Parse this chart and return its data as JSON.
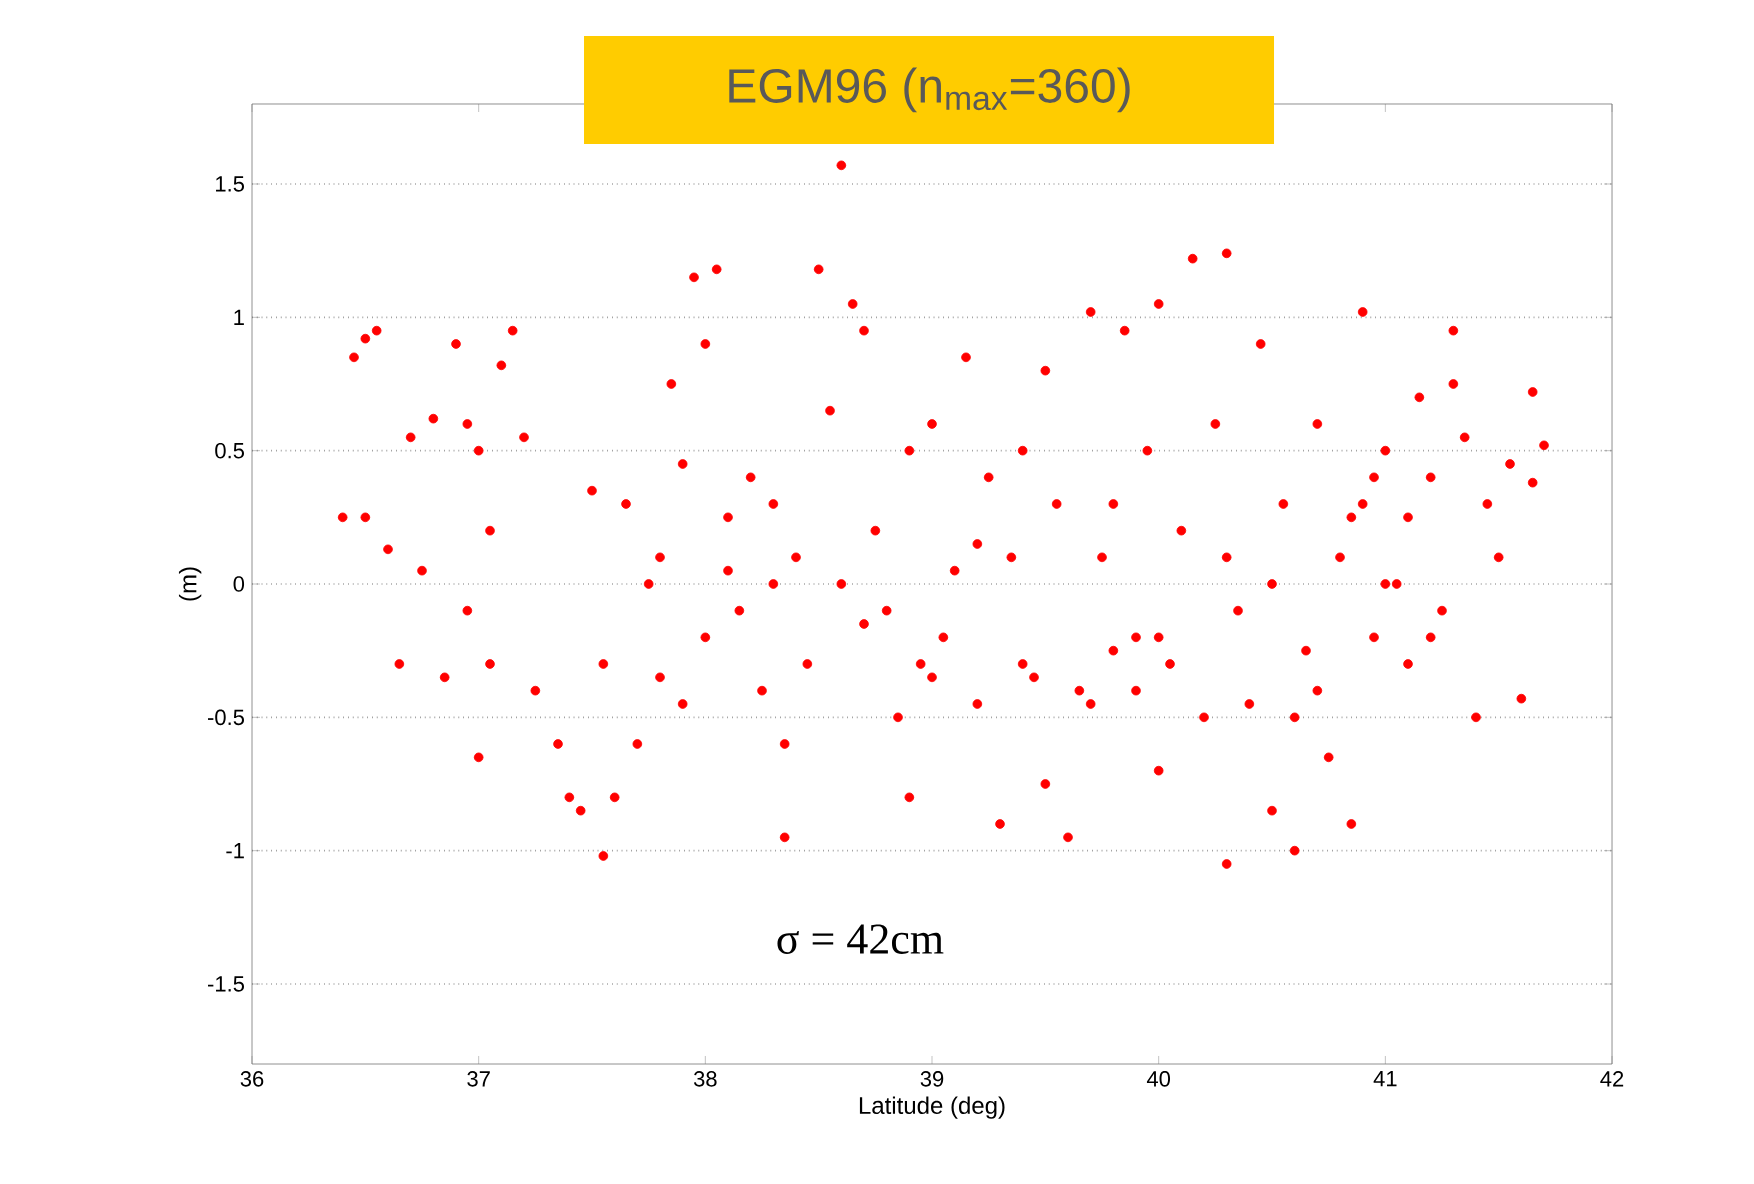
{
  "chart_data": {
    "type": "scatter",
    "title": "EGM96 (n$_{max}$=360)",
    "xlabel": "Latitude (deg)",
    "ylabel": "(m)",
    "annotations": [
      "σ = 42cm"
    ],
    "xlim": [
      36,
      42
    ],
    "ylim": [
      -1.8,
      1.8
    ],
    "xticks": [
      36,
      37,
      38,
      39,
      40,
      41,
      42
    ],
    "yticks": [
      -1.5,
      -1,
      -0.5,
      0,
      0.5,
      1,
      1.5
    ],
    "grid": "y",
    "marker": "circle",
    "series": [
      {
        "color": "#ff0000",
        "x": [
          36.45,
          36.5,
          36.55,
          36.4,
          36.5,
          36.6,
          36.65,
          36.7,
          36.8,
          36.9,
          36.95,
          37.0,
          37.05,
          37.1,
          37.15,
          36.75,
          36.85,
          36.95,
          37.0,
          37.05,
          37.2,
          37.25,
          37.35,
          37.4,
          37.45,
          37.5,
          37.55,
          37.55,
          37.6,
          37.65,
          37.7,
          37.75,
          37.8,
          37.85,
          37.9,
          37.95,
          38.0,
          38.05,
          38.0,
          38.1,
          38.15,
          38.2,
          38.25,
          38.3,
          38.35,
          38.35,
          38.4,
          38.45,
          38.5,
          38.55,
          38.6,
          38.65,
          38.7,
          38.75,
          38.8,
          38.85,
          38.9,
          38.9,
          38.95,
          39.0,
          39.05,
          39.1,
          39.15,
          39.2,
          39.25,
          39.3,
          39.35,
          39.4,
          39.45,
          39.5,
          39.5,
          39.55,
          39.6,
          39.65,
          39.7,
          39.75,
          39.8,
          39.85,
          39.9,
          39.95,
          40.0,
          40.0,
          40.05,
          40.1,
          40.15,
          40.2,
          40.25,
          40.3,
          40.3,
          40.35,
          40.4,
          40.45,
          40.5,
          40.55,
          40.6,
          40.65,
          40.7,
          40.75,
          40.8,
          40.85,
          40.9,
          40.9,
          40.95,
          41.0,
          41.05,
          41.1,
          41.15,
          41.2,
          41.25,
          41.3,
          41.35,
          41.4,
          41.45,
          41.5,
          41.55,
          41.6,
          41.65,
          41.7,
          41.65,
          41.3,
          41.0,
          40.95,
          41.1,
          41.2,
          40.85,
          40.7,
          40.5,
          40.0,
          39.9,
          39.7,
          39.4,
          39.0,
          38.6,
          38.3,
          38.1,
          37.8,
          37.9,
          38.7,
          39.2,
          39.8,
          40.3,
          40.6
        ],
        "values": [
          0.85,
          0.92,
          0.95,
          0.25,
          0.25,
          0.13,
          -0.3,
          0.55,
          0.62,
          0.9,
          0.6,
          0.5,
          0.2,
          0.82,
          0.95,
          0.05,
          -0.35,
          -0.1,
          -0.65,
          -0.3,
          0.55,
          -0.4,
          -0.6,
          -0.8,
          -0.85,
          0.35,
          -1.02,
          -0.3,
          -0.8,
          0.3,
          -0.6,
          0.0,
          -0.35,
          0.75,
          0.45,
          1.15,
          0.9,
          1.18,
          -0.2,
          0.25,
          -0.1,
          0.4,
          -0.4,
          0.3,
          -0.95,
          -0.6,
          0.1,
          -0.3,
          1.18,
          0.65,
          1.57,
          1.05,
          0.95,
          0.2,
          -0.1,
          -0.5,
          0.5,
          -0.8,
          -0.3,
          0.6,
          -0.2,
          0.05,
          0.85,
          -0.45,
          0.4,
          -0.9,
          0.1,
          0.5,
          -0.35,
          0.8,
          -0.75,
          0.3,
          -0.95,
          -0.4,
          1.02,
          0.1,
          -0.25,
          0.95,
          -0.2,
          0.5,
          -0.7,
          1.05,
          -0.3,
          0.2,
          1.22,
          -0.5,
          0.6,
          1.24,
          -1.05,
          -0.1,
          -0.45,
          0.9,
          -0.85,
          0.3,
          -1.0,
          -0.25,
          0.6,
          -0.65,
          0.1,
          -0.9,
          1.02,
          0.3,
          -0.2,
          0.5,
          0.0,
          0.25,
          0.7,
          0.4,
          -0.1,
          0.95,
          0.55,
          -0.5,
          0.3,
          0.1,
          0.45,
          -0.43,
          0.72,
          0.52,
          0.38,
          0.75,
          0.0,
          0.4,
          -0.3,
          -0.2,
          0.25,
          -0.4,
          0.0,
          -0.2,
          -0.4,
          -0.45,
          -0.3,
          -0.35,
          0.0,
          0.0,
          0.05,
          0.1,
          -0.45,
          -0.15,
          0.15,
          0.3,
          0.1,
          -0.5
        ]
      }
    ]
  }
}
